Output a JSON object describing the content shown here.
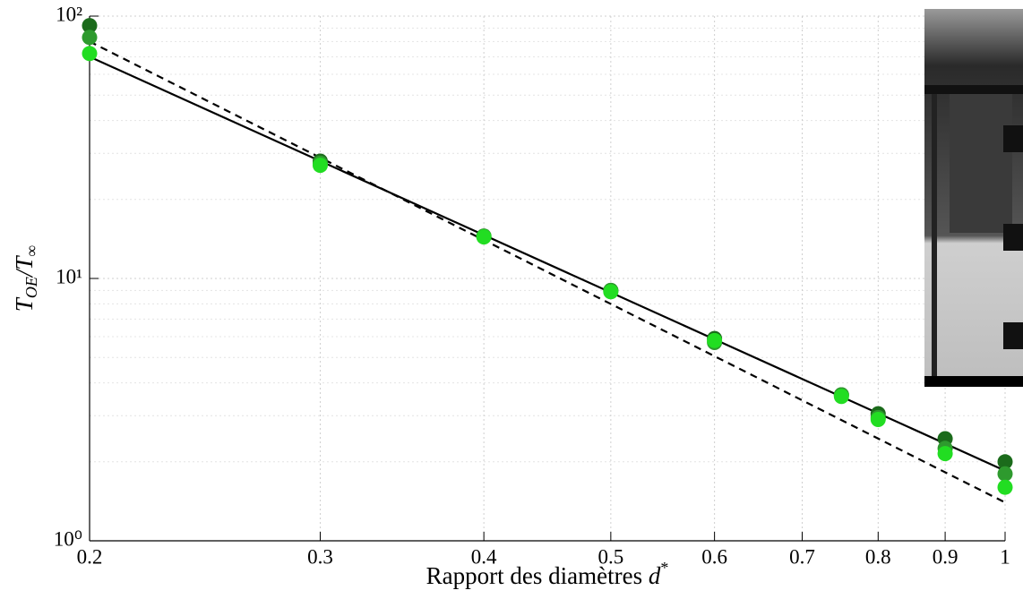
{
  "chart_data": {
    "type": "scatter",
    "xlabel": [
      "Rapport des diamètres ",
      "d",
      "*"
    ],
    "ylabel": [
      "T",
      "OE",
      "/T",
      "∞"
    ],
    "x": [
      0.2,
      0.3,
      0.4,
      0.5,
      0.6,
      0.75,
      0.8,
      0.9,
      1
    ],
    "series": [
      {
        "color": "#1b6b1b",
        "values": [
          92,
          28,
          14.5,
          9,
          5.9,
          3.6,
          3.05,
          2.45,
          2.0
        ]
      },
      {
        "color": "#2e9a2e",
        "values": [
          83,
          27.5,
          14.5,
          9,
          5.7,
          3.6,
          2.95,
          2.25,
          1.8
        ]
      },
      {
        "color": "#22dd22",
        "values": [
          72,
          27,
          14.4,
          8.9,
          5.8,
          3.55,
          2.9,
          2.15,
          1.6
        ]
      }
    ],
    "lines": [
      {
        "x": [
          0.2,
          1
        ],
        "values": [
          70,
          1.85
        ],
        "color": "#000000",
        "dashed": false
      },
      {
        "x": [
          0.2,
          1
        ],
        "values": [
          80,
          1.4
        ],
        "color": "#000000",
        "dashed": true
      }
    ],
    "xlim": [
      0.2,
      1
    ],
    "ylim": [
      1,
      100
    ],
    "xticks": [
      0.2,
      0.3,
      0.4,
      0.5,
      0.6,
      0.7,
      0.8,
      0.9,
      1
    ],
    "yticks": [
      {
        "value": 1,
        "label": "10⁰"
      },
      {
        "value": 10,
        "label": "10¹"
      },
      {
        "value": 100,
        "label": "10²"
      }
    ],
    "xscale": "log",
    "yscale": "log",
    "grid": true
  }
}
